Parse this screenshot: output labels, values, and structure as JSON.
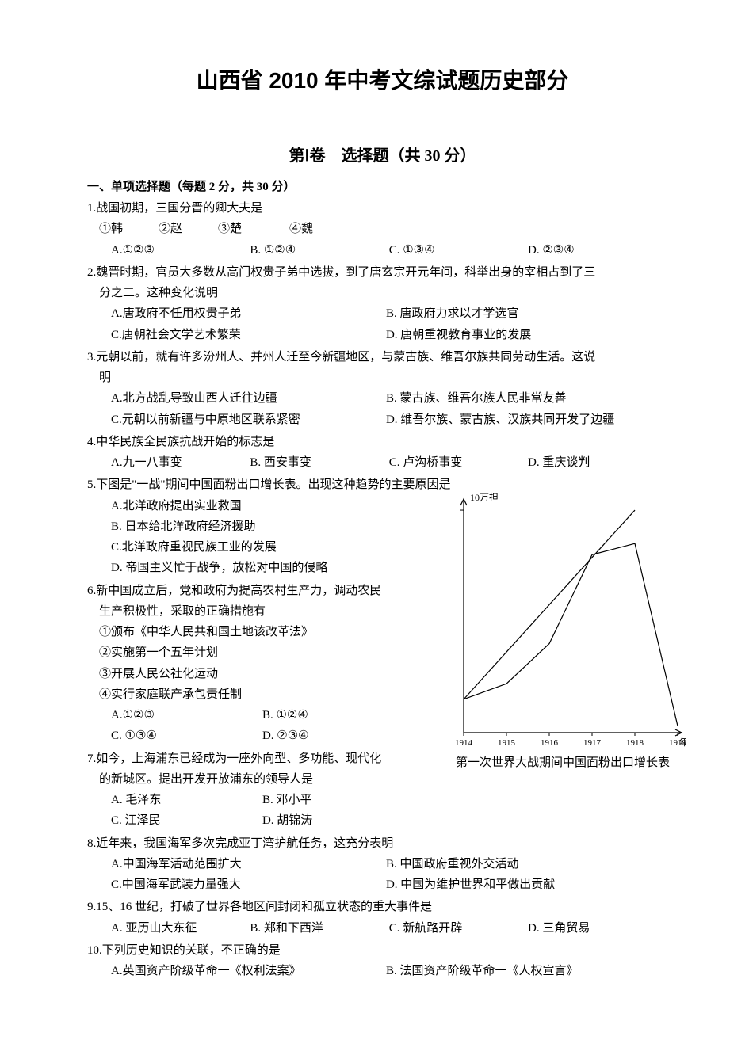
{
  "doc_title": "山西省 2010 年中考文综试题历史部分",
  "part_title": "第Ⅰ卷　选择题（共 30 分）",
  "section_heading": "一、单项选择题（每题 2 分，共 30 分）",
  "q1": {
    "stem": "1.战国初期，三国分晋的卿大夫是",
    "nums": "①韩　　　②赵　　　③楚　　　　④魏",
    "A": "A.①②③",
    "B": "B. ①②④",
    "C": "C. ①③④",
    "D": "D. ②③④"
  },
  "q2": {
    "stem1": "2.魏晋时期，官员大多数从高门权贵子弟中选拔，到了唐玄宗开元年间，科举出身的宰相占到了三",
    "stem2": "分之二。这种变化说明",
    "A": "A.唐政府不任用权贵子弟",
    "B": "B. 唐政府力求以才学选官",
    "C": "C.唐朝社会文学艺术繁荣",
    "D": "D. 唐朝重视教育事业的发展"
  },
  "q3": {
    "stem1": "3.元朝以前，就有许多汾州人、并州人迁至今新疆地区，与蒙古族、维吾尔族共同劳动生活。这说",
    "stem2": "明",
    "A": "A.北方战乱导致山西人迁往边疆",
    "B": "B. 蒙古族、维吾尔族人民非常友善",
    "C": "C.元朝以前新疆与中原地区联系紧密",
    "D": "D. 维吾尔族、蒙古族、汉族共同开发了边疆"
  },
  "q4": {
    "stem": "4.中华民族全民族抗战开始的标志是",
    "A": "A.九一八事变",
    "B": "B. 西安事变",
    "C": "C. 卢沟桥事变",
    "D": "D. 重庆谈判"
  },
  "q5": {
    "stem": "5.下图是\"一战\"期间中国面粉出口增长表。出现这种趋势的主要原因是",
    "A": "A.北洋政府提出实业救国",
    "B": "B. 日本给北洋政府经济援助",
    "C": "C.北洋政府重视民族工业的发展",
    "D": "D. 帝国主义忙于战争，放松对中国的侵略"
  },
  "q6": {
    "stem1": "6.新中国成立后，党和政府为提高农村生产力，调动农民",
    "stem2": "生产积极性，采取的正确措施有",
    "n1": "①颁布《中华人民共和国土地该改革法》",
    "n2": "②实施第一个五年计划",
    "n3": "③开展人民公社化运动",
    "n4": "④实行家庭联产承包责任制",
    "A": "A.①②③",
    "B": "B. ①②④",
    "C": "C. ①③④",
    "D": "D. ②③④"
  },
  "q7": {
    "stem1": "7.如今，上海浦东已经成为一座外向型、多功能、现代化",
    "stem2": "的新城区。提出开发开放浦东的领导人是",
    "A": "A. 毛泽东",
    "B": "B. 邓小平",
    "C": "C. 江泽民",
    "D": "D. 胡锦涛"
  },
  "q8": {
    "stem": "8.近年来，我国海军多次完成亚丁湾护航任务，这充分表明",
    "A": "A.中国海军活动范围扩大",
    "B": "B. 中国政府重视外交活动",
    "C": "C.中国海军武装力量强大",
    "D": "D. 中国为维护世界和平做出贡献"
  },
  "q9": {
    "stem": "9.15、16 世纪，打破了世界各地区间封闭和孤立状态的重大事件是",
    "A": "A. 亚历山大东征",
    "B": "B. 郑和下西洋",
    "C": "C. 新航路开辟",
    "D": "D. 三角贸易"
  },
  "q10": {
    "stem": "10.下列历史知识的关联，不正确的是",
    "A": "A.英国资产阶级革命一《权利法案》",
    "B": "B. 法国资产阶级革命一《人权宣言》"
  },
  "chart": {
    "type": "line",
    "y_label": "10万担",
    "x_labels": [
      "1914",
      "1915",
      "1916",
      "1917",
      "1918",
      "1919"
    ],
    "x_unit": "年",
    "caption": "第一次世界大战期间中国面粉出口增长表",
    "series": [
      {
        "points": [
          [
            1914,
            1.5
          ],
          [
            1915,
            2.2
          ],
          [
            1916,
            4.0
          ],
          [
            1917,
            8.0
          ],
          [
            1918,
            8.5
          ],
          [
            1919,
            0.3
          ]
        ],
        "color": "#000000",
        "width": 1.2
      },
      {
        "points": [
          [
            1914,
            1.5
          ],
          [
            1918,
            10.0
          ]
        ],
        "color": "#000000",
        "width": 1.2
      }
    ],
    "ylim": [
      0,
      10.5
    ],
    "axis_color": "#000000",
    "font_size_labels": 12,
    "font_size_caption": 15,
    "background_color": "#ffffff"
  }
}
